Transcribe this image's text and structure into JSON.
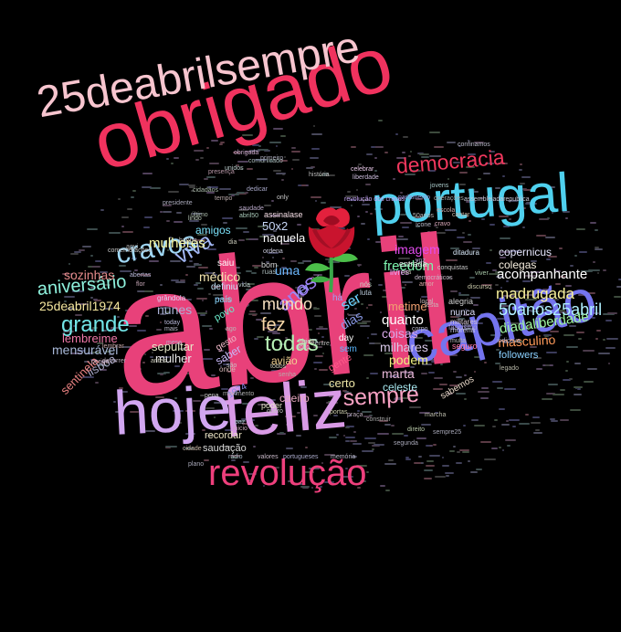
{
  "cloud": {
    "words": [
      {
        "text": "abril",
        "color": "#e8417a"
      },
      {
        "text": "obrigado",
        "color": "#f0325e"
      },
      {
        "text": "25deabrilsempre",
        "color": "#f7c5cf"
      },
      {
        "text": "portugal",
        "color": "#4fd0ee"
      },
      {
        "text": "capitão",
        "color": "#7474ee"
      },
      {
        "text": "feliz",
        "color": "#d99ae6"
      },
      {
        "text": "hoje",
        "color": "#d1a6f0"
      },
      {
        "text": "revolução",
        "color": "#ee3f7c"
      },
      {
        "text": "sempre",
        "color": "#f7a1c3"
      },
      {
        "text": "democracia",
        "color": "#f2385e"
      },
      {
        "text": "cravos",
        "color": "#a0d8f5"
      },
      {
        "text": "viva",
        "color": "#a2b7f5"
      },
      {
        "text": "grande",
        "color": "#73e6e8"
      },
      {
        "text": "aniversário",
        "color": "#8ef2dd"
      },
      {
        "text": "anos",
        "color": "#9d7ef5"
      },
      {
        "text": "todas",
        "color": "#b7f0b5"
      },
      {
        "text": "fez",
        "color": "#f9d8a8"
      },
      {
        "text": "mundo",
        "color": "#f7e0c0"
      },
      {
        "text": "50anos25abril",
        "color": "#b0f0ff"
      },
      {
        "text": "madrugada",
        "color": "#f7f09a"
      },
      {
        "text": "acompanhante",
        "color": "#ffffff"
      },
      {
        "text": "diadaliberdade",
        "color": "#9ef3a0"
      },
      {
        "text": "masculino",
        "color": "#ff9a5a"
      },
      {
        "text": "freedom",
        "color": "#7ef5b0"
      },
      {
        "text": "imagem",
        "color": "#e44cf0"
      },
      {
        "text": "mulheres",
        "color": "#f5f5a0"
      },
      {
        "text": "sozinhas",
        "color": "#e48a8a"
      },
      {
        "text": "médico",
        "color": "#f5e6b0"
      },
      {
        "text": "25deabril1974",
        "color": "#f7e9a0"
      },
      {
        "text": "nunes",
        "color": "#aab2d6"
      },
      {
        "text": "lembreime",
        "color": "#f078a8"
      },
      {
        "text": "mensurável",
        "color": "#a8b8d8"
      },
      {
        "text": "sepultar",
        "color": "#e8e8c8"
      },
      {
        "text": "mulher",
        "color": "#e8e8e8"
      },
      {
        "text": "quanto",
        "color": "#ffffff"
      },
      {
        "text": "coisas",
        "color": "#d8a8e8"
      },
      {
        "text": "milhares",
        "color": "#d8c8e8"
      },
      {
        "text": "podem",
        "color": "#f0f080"
      },
      {
        "text": "marta",
        "color": "#e8b8d8"
      },
      {
        "text": "certo",
        "color": "#f0e8a8"
      },
      {
        "text": "celeste",
        "color": "#a8e8f0"
      },
      {
        "text": "avião",
        "color": "#f0d090"
      },
      {
        "text": "caeiro",
        "color": "#e8a8c0"
      },
      {
        "text": "naquela",
        "color": "#ffffff"
      },
      {
        "text": "uma",
        "color": "#6ab8ff"
      },
      {
        "text": "50x2",
        "color": "#c8d8f8"
      },
      {
        "text": "copernicus",
        "color": "#e8e8ff"
      },
      {
        "text": "colegas",
        "color": "#f8f0e0"
      },
      {
        "text": "ser",
        "color": "#6ad0ff"
      },
      {
        "text": "dias",
        "color": "#8a9ae8"
      },
      {
        "text": "metime",
        "color": "#f0a070"
      },
      {
        "text": "saudação",
        "color": "#d8d8d8"
      },
      {
        "text": "recordar",
        "color": "#e8e0c0"
      },
      {
        "text": "lisboa",
        "color": "#a8a8c8"
      },
      {
        "text": "sentinela",
        "color": "#e88080"
      },
      {
        "text": "amigos",
        "color": "#7ae0f8"
      },
      {
        "text": "saiu",
        "color": "#ffffff"
      },
      {
        "text": "definiu",
        "color": "#c8e8ff"
      },
      {
        "text": "país",
        "color": "#8ad8ff"
      },
      {
        "text": "povo",
        "color": "#6ae8c8"
      },
      {
        "text": "saber",
        "color": "#c8b8f8"
      },
      {
        "text": "gesto",
        "color": "#f0b8c8"
      },
      {
        "text": "day",
        "color": "#ffffff"
      },
      {
        "text": "sem",
        "color": "#5ab8ff"
      },
      {
        "text": "gente",
        "color": "#ff5a8a"
      },
      {
        "text": "sabemos",
        "color": "#e8d8c8"
      },
      {
        "text": "nunca",
        "color": "#e0e0ff"
      },
      {
        "text": "followers",
        "color": "#8ad0ff"
      },
      {
        "text": "alegria",
        "color": "#d0d0d0"
      },
      {
        "text": "livres",
        "color": "#e8a8f8"
      },
      {
        "text": "entrada",
        "color": "#e8e8e8"
      },
      {
        "text": "1974",
        "color": "#8a8ae8"
      },
      {
        "text": "há",
        "color": "#a0a0f0"
      },
      {
        "text": "ver",
        "color": "#9898f8"
      },
      {
        "text": "só",
        "color": "#e8a0ff"
      },
      {
        "text": "assinalase",
        "color": "#f8e0e8"
      },
      {
        "text": "poder",
        "color": "#e8e8c8"
      },
      {
        "text": "fascismo",
        "color": "#a89ad8"
      },
      {
        "text": "militares",
        "color": "#d8c8d8"
      },
      {
        "text": "morena",
        "color": "#c8c8e8"
      },
      {
        "text": "ditadura",
        "color": "#d8e8f8"
      },
      {
        "text": "seguro",
        "color": "#ff7aaa"
      },
      {
        "text": "grândola",
        "color": "#d8d8f8"
      },
      {
        "text": "comemorações",
        "color": "#c8c8c8"
      },
      {
        "text": "portugueses",
        "color": "#a8a8c8"
      },
      {
        "text": "memória",
        "color": "#b8b8c8"
      },
      {
        "text": "assembleiadarepublica",
        "color": "#c8c8d8"
      },
      {
        "text": "parlamento",
        "color": "#9898d8"
      },
      {
        "text": "revolução dos cravos",
        "color": "#c8a8f8"
      },
      {
        "text": "história",
        "color": "#b8b8b8"
      },
      {
        "text": "celebrar",
        "color": "#e8c8e8"
      },
      {
        "text": "liberdade",
        "color": "#c8b8d8"
      },
      {
        "text": "presença",
        "color": "#b898a8"
      },
      {
        "text": "movimento",
        "color": "#a8a8a8"
      },
      {
        "text": "pena",
        "color": "#c8c8c8"
      },
      {
        "text": "corpo",
        "color": "#b8b8c8"
      },
      {
        "text": "segunda",
        "color": "#a8a8b8"
      },
      {
        "text": "construir",
        "color": "#a8a8a8"
      },
      {
        "text": "entre",
        "color": "#b8b8b8"
      },
      {
        "text": "quero",
        "color": "#c8c8c8"
      },
      {
        "text": "hoje25",
        "color": "#a8b8c8"
      },
      {
        "text": "novo",
        "color": "#c8c8d8"
      },
      {
        "text": "ainda",
        "color": "#d8c8b8"
      },
      {
        "text": "senha",
        "color": "#b8a8a8"
      },
      {
        "text": "todos",
        "color": "#c8c8b8"
      },
      {
        "text": "abertas",
        "color": "#b8b8d8"
      },
      {
        "text": "primeiro",
        "color": "#a8a8b8"
      },
      {
        "text": "lindo",
        "color": "#b8c8b8"
      },
      {
        "text": "valores",
        "color": "#c8b8c8"
      },
      {
        "text": "cidadãos",
        "color": "#a8b8a8"
      },
      {
        "text": "praça",
        "color": "#b8a8b8"
      },
      {
        "text": "portas",
        "color": "#c8c8a8"
      },
      {
        "text": "jovens",
        "color": "#a8c8c8"
      },
      {
        "text": "marcha",
        "color": "#b8b8a8"
      },
      {
        "text": "dedicar",
        "color": "#a8a8c8"
      },
      {
        "text": "escola",
        "color": "#c8a8a8"
      },
      {
        "text": "bom",
        "color": "#d8d8d8"
      },
      {
        "text": "luta",
        "color": "#b8c8d8"
      },
      {
        "text": "nós",
        "color": "#c8d8c8"
      },
      {
        "text": "can",
        "color": "#a8a8a8"
      },
      {
        "text": "ago",
        "color": "#b8b8b8"
      },
      {
        "text": "são",
        "color": "#c8c8c8"
      },
      {
        "text": "onde",
        "color": "#d8b8b8"
      },
      {
        "text": "today",
        "color": "#b8b8d8"
      },
      {
        "text": "only",
        "color": "#c8c8c8"
      },
      {
        "text": "ruas",
        "color": "#a8b8b8"
      },
      {
        "text": "saudade",
        "color": "#b8a8c8"
      },
      {
        "text": "presidente",
        "color": "#a8a8b8"
      },
      {
        "text": "cantar",
        "color": "#c8b8a8"
      },
      {
        "text": "amor",
        "color": "#d8a8a8"
      },
      {
        "text": "mais",
        "color": "#b8b8c8"
      },
      {
        "text": "aqui",
        "color": "#a8a8a8"
      },
      {
        "text": "flor",
        "color": "#c8a8b8"
      },
      {
        "text": "vida",
        "color": "#b8c8c8"
      },
      {
        "text": "dia",
        "color": "#c8c8b8"
      },
      {
        "text": "paz",
        "color": "#a8b8c8"
      },
      {
        "text": "tempo",
        "color": "#b8a8a8"
      },
      {
        "text": "festa",
        "color": "#c8b8b8"
      },
      {
        "text": "voz",
        "color": "#a8a8c8"
      },
      {
        "text": "rua",
        "color": "#b8b8a8"
      },
      {
        "text": "obrigada",
        "color": "#c8a8c8"
      },
      {
        "text": "abril50",
        "color": "#a8c8b8"
      },
      {
        "text": "50anos",
        "color": "#b8b8b8"
      },
      {
        "text": "conquistas",
        "color": "#c8c8c8"
      },
      {
        "text": "cravo",
        "color": "#d8a8b8"
      },
      {
        "text": "sempre25",
        "color": "#a8a8b8"
      },
      {
        "text": "direito",
        "color": "#b8c8a8"
      },
      {
        "text": "democráticos",
        "color": "#c8b8c8"
      },
      {
        "text": "operações",
        "color": "#a8a8a8"
      },
      {
        "text": "confinamos",
        "color": "#b8b8c8"
      },
      {
        "text": "ordena",
        "color": "#c8c8d8"
      },
      {
        "text": "último",
        "color": "#a8b8a8"
      },
      {
        "text": "happy",
        "color": "#c8c8c8"
      },
      {
        "text": "multa",
        "color": "#b8b8b8"
      },
      {
        "text": "lembrar",
        "color": "#c8a8a8"
      },
      {
        "text": "perigo",
        "color": "#d8b8c8"
      },
      {
        "text": "indicava",
        "color": "#a8a8c8"
      },
      {
        "text": "decorrer",
        "color": "#b8a8b8"
      },
      {
        "text": "discurso",
        "color": "#c8c8a8"
      },
      {
        "text": "comunicado",
        "color": "#a8b8b8"
      },
      {
        "text": "unidos",
        "color": "#b8c8c8"
      },
      {
        "text": "cidade",
        "color": "#c8b8a8"
      },
      {
        "text": "plano",
        "color": "#a8a8b8"
      },
      {
        "text": "legado",
        "color": "#b8b8a8"
      },
      {
        "text": "inicio",
        "color": "#c8a8b8"
      },
      {
        "text": "viver",
        "color": "#a8c8a8"
      },
      {
        "text": "mesa",
        "color": "#b8a8c8"
      },
      {
        "text": "antes",
        "color": "#c8c8b8"
      },
      {
        "text": "rádio",
        "color": "#a8b8c8"
      },
      {
        "text": "ícone",
        "color": "#b8b8c8"
      },
      {
        "text": "local",
        "color": "#c8b8b8"
      }
    ]
  }
}
